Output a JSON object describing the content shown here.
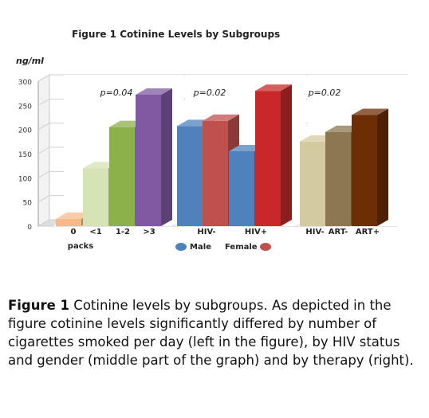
{
  "chart_data": {
    "type": "bar",
    "title": "Figure 1 Cotinine Levels by Subgroups",
    "ylabel": "ng/ml",
    "ylim": [
      0,
      300
    ],
    "yticks": [
      0,
      50,
      100,
      150,
      200,
      250,
      300
    ],
    "grid": true,
    "groups": [
      {
        "bars": [
          {
            "label": "0",
            "value": 15,
            "color": "#f7b98a"
          },
          {
            "label": "<1",
            "value": 120,
            "color": "#d5e3b5"
          },
          {
            "label": "1-2",
            "value": 205,
            "color": "#8cb04a"
          },
          {
            "label": ">3",
            "value": 272,
            "color": "#7f5aa3"
          }
        ],
        "sublabel": "packs",
        "annotation": "p=0.04"
      },
      {
        "bars": [
          {
            "label": "HIV-",
            "value": 207,
            "color": "#4f81bd",
            "series": "Male"
          },
          {
            "label": "",
            "value": 218,
            "color": "#c0504d",
            "series": "Female"
          },
          {
            "label": "HIV+",
            "value": 155,
            "color": "#4f81bd",
            "series": "Male"
          },
          {
            "label": "",
            "value": 280,
            "color": "#c8282a",
            "series": "Female"
          }
        ],
        "annotation": "p=0.02"
      },
      {
        "bars": [
          {
            "label": "HIV-",
            "value": 175,
            "color": "#d4caa0"
          },
          {
            "label": "ART-",
            "value": 195,
            "color": "#8b7750"
          },
          {
            "label": "ART+",
            "value": 230,
            "color": "#6e2e05"
          }
        ],
        "annotation": "p=0.02"
      }
    ],
    "legend": [
      {
        "name": "Male",
        "color": "#4f81bd"
      },
      {
        "name": "Female",
        "color": "#c0504d"
      }
    ]
  },
  "caption": {
    "bold": "Figure 1",
    "text": " Cotinine levels by subgroups. As depicted in the figure cotinine levels significantly differed by number of cigarettes smoked per day (left in the figure), by HIV status and gender (middle part of the graph) and by therapy (right)."
  }
}
